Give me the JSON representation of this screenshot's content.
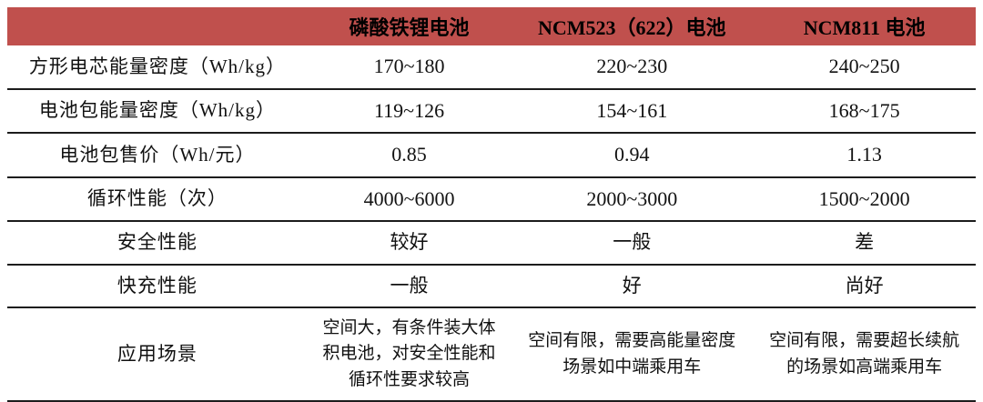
{
  "table": {
    "accent_color": "#C0504D",
    "line_color": "#1c1c1c",
    "columns": {
      "0": "",
      "1": "磷酸铁锂电池",
      "2": "NCM523（622）电池",
      "3": "NCM811 电池"
    },
    "rows": [
      {
        "label": "方形电芯能量密度（Wh/kg）",
        "values": [
          "170~180",
          "220~230",
          "240~250"
        ]
      },
      {
        "label": "电池包能量密度（Wh/kg）",
        "values": [
          "119~126",
          "154~161",
          "168~175"
        ]
      },
      {
        "label": "电池包售价（Wh/元）",
        "values": [
          "0.85",
          "0.94",
          "1.13"
        ]
      },
      {
        "label": "循环性能（次）",
        "values": [
          "4000~6000",
          "2000~3000",
          "1500~2000"
        ]
      },
      {
        "label": "安全性能",
        "values": [
          "较好",
          "一般",
          "差"
        ]
      },
      {
        "label": "快充性能",
        "values": [
          "一般",
          "好",
          "尚好"
        ]
      },
      {
        "label": "应用场景",
        "values": [
          "空间大，有条件装大体积电池，对安全性能和循环性要求较高",
          "空间有限，需要高能量密度场景如中端乘用车",
          "空间有限，需要超长续航的场景如高端乘用车"
        ]
      }
    ]
  },
  "chart_data": {
    "type": "table",
    "title": "",
    "categories": [
      "磷酸铁锂电池",
      "NCM523（622）电池",
      "NCM811 电池"
    ],
    "series": [
      {
        "name": "方形电芯能量密度（Wh/kg）",
        "values": [
          "170~180",
          "220~230",
          "240~250"
        ]
      },
      {
        "name": "电池包能量密度（Wh/kg）",
        "values": [
          "119~126",
          "154~161",
          "168~175"
        ]
      },
      {
        "name": "电池包售价（Wh/元）",
        "values": [
          0.85,
          0.94,
          1.13
        ]
      },
      {
        "name": "循环性能（次）",
        "values": [
          "4000~6000",
          "2000~3000",
          "1500~2000"
        ]
      },
      {
        "name": "安全性能",
        "values": [
          "较好",
          "一般",
          "差"
        ]
      },
      {
        "name": "快充性能",
        "values": [
          "一般",
          "好",
          "尚好"
        ]
      },
      {
        "name": "应用场景",
        "values": [
          "空间大，有条件装大体积电池，对安全性能和循环性要求较高",
          "空间有限，需要高能量密度场景如中端乘用车",
          "空间有限，需要超长续航的场景如高端乘用车"
        ]
      }
    ]
  }
}
